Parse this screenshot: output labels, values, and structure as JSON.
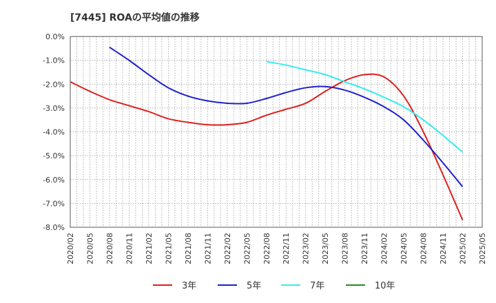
{
  "chart_data": {
    "type": "line",
    "title": "[7445]  ROAの平均値の推移",
    "xlabel": "",
    "ylabel": "",
    "x_ticks": [
      "2020/02",
      "2020/05",
      "2020/08",
      "2020/11",
      "2021/02",
      "2021/05",
      "2021/08",
      "2021/11",
      "2022/02",
      "2022/05",
      "2022/08",
      "2022/11",
      "2023/02",
      "2023/05",
      "2023/08",
      "2023/11",
      "2024/02",
      "2024/05",
      "2024/08",
      "2024/11",
      "2025/02",
      "2025/05"
    ],
    "y_ticks": [
      "0.0%",
      "-1.0%",
      "-2.0%",
      "-3.0%",
      "-4.0%",
      "-5.0%",
      "-6.0%",
      "-7.0%",
      "-8.0%"
    ],
    "ylim": [
      -8,
      0
    ],
    "grid": true,
    "legend_position": "bottom",
    "series": [
      {
        "name": "3年",
        "color": "#dd1f1f",
        "x": [
          "2020/02",
          "2020/05",
          "2020/08",
          "2020/11",
          "2021/02",
          "2021/05",
          "2021/08",
          "2021/11",
          "2022/02",
          "2022/05",
          "2022/08",
          "2022/11",
          "2023/02",
          "2023/05",
          "2023/08",
          "2023/11",
          "2024/02",
          "2024/05",
          "2024/08",
          "2024/11",
          "2025/02"
        ],
        "values": [
          -1.9,
          -2.3,
          -2.65,
          -2.9,
          -3.15,
          -3.45,
          -3.6,
          -3.7,
          -3.7,
          -3.6,
          -3.3,
          -3.05,
          -2.8,
          -2.3,
          -1.85,
          -1.6,
          -1.7,
          -2.5,
          -4.0,
          -5.8,
          -7.7
        ]
      },
      {
        "name": "5年",
        "color": "#1f1fcc",
        "x": [
          "2020/08",
          "2020/11",
          "2021/02",
          "2021/05",
          "2021/08",
          "2021/11",
          "2022/02",
          "2022/05",
          "2022/08",
          "2022/11",
          "2023/02",
          "2023/05",
          "2023/08",
          "2023/11",
          "2024/02",
          "2024/05",
          "2024/08",
          "2024/11",
          "2025/02"
        ],
        "values": [
          -0.45,
          -1.0,
          -1.6,
          -2.15,
          -2.5,
          -2.7,
          -2.8,
          -2.8,
          -2.6,
          -2.35,
          -2.15,
          -2.1,
          -2.25,
          -2.55,
          -2.95,
          -3.5,
          -4.35,
          -5.3,
          -6.3
        ]
      },
      {
        "name": "7年",
        "color": "#33eeee",
        "x": [
          "2022/08",
          "2022/11",
          "2023/02",
          "2023/05",
          "2023/08",
          "2023/11",
          "2024/02",
          "2024/05",
          "2024/08",
          "2024/11",
          "2025/02"
        ],
        "values": [
          -1.05,
          -1.2,
          -1.4,
          -1.6,
          -1.9,
          -2.2,
          -2.55,
          -2.95,
          -3.5,
          -4.15,
          -4.85
        ]
      },
      {
        "name": "10年",
        "color": "#228b22",
        "x": [],
        "values": []
      }
    ]
  }
}
